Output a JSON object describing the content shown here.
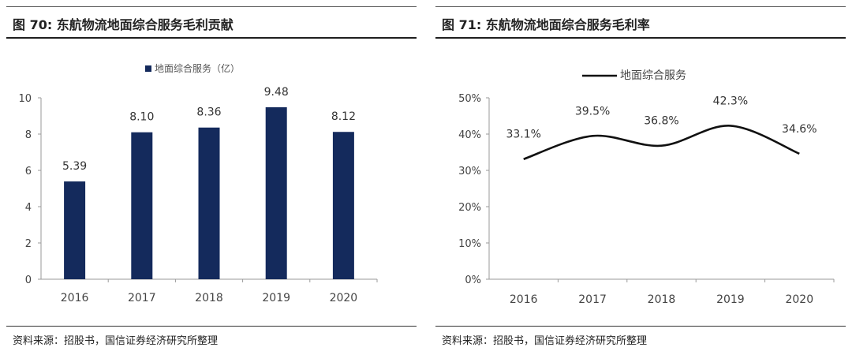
{
  "left_panel": {
    "title": "图 70:  东航物流地面综合服务毛利贡献",
    "source": "资料来源：招股书，国信证券经济研究所整理"
  },
  "right_panel": {
    "title": "图 71:  东航物流地面综合服务毛利率",
    "source": "资料来源：招股书，国信证券经济研究所整理"
  },
  "chart_data": [
    {
      "type": "bar",
      "categories": [
        "2016",
        "2017",
        "2018",
        "2019",
        "2020"
      ],
      "series": [
        {
          "name": "地面综合服务（亿）",
          "values": [
            5.39,
            8.1,
            8.36,
            9.48,
            8.12
          ],
          "color": "#142a5c"
        }
      ],
      "data_labels": [
        "5.39",
        "8.10",
        "8.36",
        "9.48",
        "8.12"
      ],
      "ylim": [
        0,
        10
      ],
      "yticks": [
        0,
        2,
        4,
        6,
        8,
        10
      ],
      "ytick_labels": [
        "0",
        "2",
        "4",
        "6",
        "8",
        "10"
      ],
      "legend": "top-center",
      "grid": false
    },
    {
      "type": "line",
      "categories": [
        "2016",
        "2017",
        "2018",
        "2019",
        "2020"
      ],
      "series": [
        {
          "name": "地面综合服务",
          "values": [
            33.1,
            39.5,
            36.8,
            42.3,
            34.6
          ],
          "color": "#111111"
        }
      ],
      "data_labels": [
        "33.1%",
        "39.5%",
        "36.8%",
        "42.3%",
        "34.6%"
      ],
      "ylim": [
        0,
        50
      ],
      "yticks": [
        0,
        10,
        20,
        30,
        40,
        50
      ],
      "ytick_labels": [
        "0%",
        "10%",
        "20%",
        "30%",
        "40%",
        "50%"
      ],
      "legend": "top-center",
      "grid": false,
      "smooth": true
    }
  ]
}
